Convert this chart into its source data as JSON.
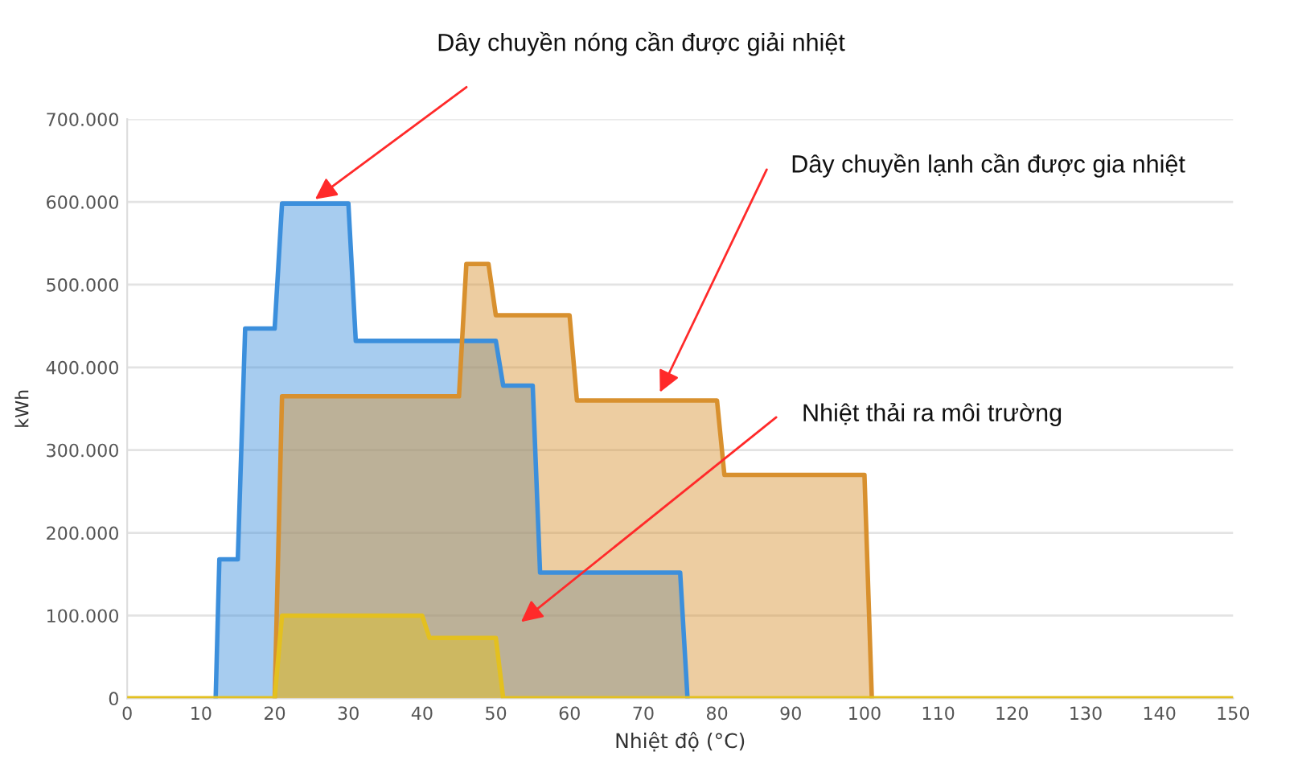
{
  "chart_data": {
    "type": "area",
    "xlabel": "Nhiệt độ (°C)",
    "ylabel": "kWh",
    "xlim": [
      0,
      150
    ],
    "xticks": [
      0,
      10,
      20,
      30,
      40,
      50,
      60,
      70,
      80,
      90,
      100,
      110,
      120,
      130,
      140,
      150
    ],
    "ylim": [
      0,
      700000
    ],
    "yticks": [
      {
        "value": 0,
        "label": "0"
      },
      {
        "value": 100000,
        "label": "100.000"
      },
      {
        "value": 200000,
        "label": "200.000"
      },
      {
        "value": 300000,
        "label": "300.000"
      },
      {
        "value": 400000,
        "label": "400.000"
      },
      {
        "value": 500000,
        "label": "500.000"
      },
      {
        "value": 600000,
        "label": "600.000"
      },
      {
        "value": 700000,
        "label": "700.000"
      }
    ],
    "grid": "y",
    "legend": false,
    "series": [
      {
        "color": "#3c8fdc",
        "x": [
          12,
          12.5,
          15,
          16,
          20,
          21,
          30,
          31,
          50,
          51,
          55,
          56,
          75,
          76
        ],
        "values": [
          0,
          168000,
          168000,
          447000,
          447000,
          598000,
          598000,
          432000,
          432000,
          378000,
          378000,
          152000,
          152000,
          0
        ]
      },
      {
        "color": "#d8902e",
        "x": [
          20,
          21,
          45,
          46,
          49,
          50,
          60,
          61,
          80,
          81,
          100,
          101
        ],
        "values": [
          0,
          365000,
          365000,
          525000,
          525000,
          463000,
          463000,
          360000,
          360000,
          270000,
          270000,
          0
        ]
      },
      {
        "color": "#e3c020",
        "x": [
          0,
          20,
          21,
          40,
          41,
          50,
          51,
          150
        ],
        "values": [
          0,
          0,
          100000,
          100000,
          73000,
          73000,
          0,
          0
        ]
      }
    ],
    "annotations": [
      {
        "text": "Dây chuyền nóng cần được giải nhiệt",
        "x": 25,
        "y": 600000
      },
      {
        "text": "Dây chuyền lạnh cần được gia nhiệt",
        "x": 72,
        "y": 365000
      },
      "Nhiệt thải ra môi trường"
    ]
  }
}
